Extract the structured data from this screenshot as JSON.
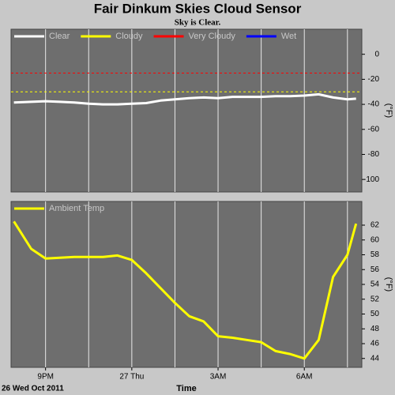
{
  "title": "Fair Dinkum Skies Cloud Sensor",
  "subtitle": "Sky is Clear.",
  "time_axis": {
    "label": "Time",
    "date": "26 Wed Oct 2011",
    "xlim": [
      19.8,
      32
    ],
    "xticks": [
      {
        "value": 21,
        "label": "9PM"
      },
      {
        "value": 24,
        "label": "27 Thu"
      },
      {
        "value": 27,
        "label": "3AM"
      },
      {
        "value": 30,
        "label": "6AM"
      }
    ],
    "xminor": [
      22.5,
      25.5,
      28.5,
      31.5
    ]
  },
  "chart_data": [
    {
      "type": "line",
      "y_label": "(°F)",
      "ylim": [
        -110,
        20
      ],
      "yticks": [
        0,
        -20,
        -40,
        -60,
        -80,
        -100
      ],
      "x": [
        19.9,
        20.5,
        21,
        21.5,
        22,
        22.5,
        23,
        23.5,
        24,
        24.5,
        25,
        25.5,
        26,
        26.5,
        27,
        27.5,
        28,
        28.5,
        29,
        29.5,
        30,
        30.5,
        31,
        31.5,
        31.8
      ],
      "series": [
        {
          "name": "Clear",
          "color": "#ffffff",
          "values": [
            -38.5,
            -38,
            -37.5,
            -38,
            -38.5,
            -39.5,
            -40,
            -40,
            -39.5,
            -39,
            -37,
            -36,
            -35,
            -34.5,
            -35,
            -34,
            -34,
            -34,
            -33.5,
            -33.5,
            -33,
            -32,
            -34.5,
            -36,
            -35.5
          ]
        },
        {
          "name": "Cloudy",
          "color": "#ffff00",
          "threshold": -30
        },
        {
          "name": "Very Cloudy",
          "color": "#ff0000",
          "threshold": -15
        },
        {
          "name": "Wet",
          "color": "#0000ff"
        }
      ]
    },
    {
      "type": "line",
      "y_label": "(°F)",
      "ylim": [
        42.8,
        65.2
      ],
      "yticks": [
        62,
        60,
        58,
        56,
        54,
        52,
        50,
        48,
        46,
        44
      ],
      "x": [
        19.9,
        20.5,
        21,
        21.5,
        22,
        22.5,
        23,
        23.5,
        24,
        24.5,
        25,
        25.5,
        26,
        26.5,
        27,
        27.5,
        28,
        28.5,
        29,
        29.5,
        30,
        30.5,
        31,
        31.5,
        31.8
      ],
      "series": [
        {
          "name": "Ambient Temp",
          "color": "#ffff00",
          "values": [
            62.5,
            58.8,
            57.5,
            57.6,
            57.7,
            57.7,
            57.7,
            57.9,
            57.3,
            55.5,
            53.5,
            51.5,
            49.7,
            49,
            47,
            46.8,
            46.5,
            46.2,
            45,
            44.6,
            44,
            46.5,
            55,
            58,
            62.2
          ]
        }
      ]
    }
  ]
}
